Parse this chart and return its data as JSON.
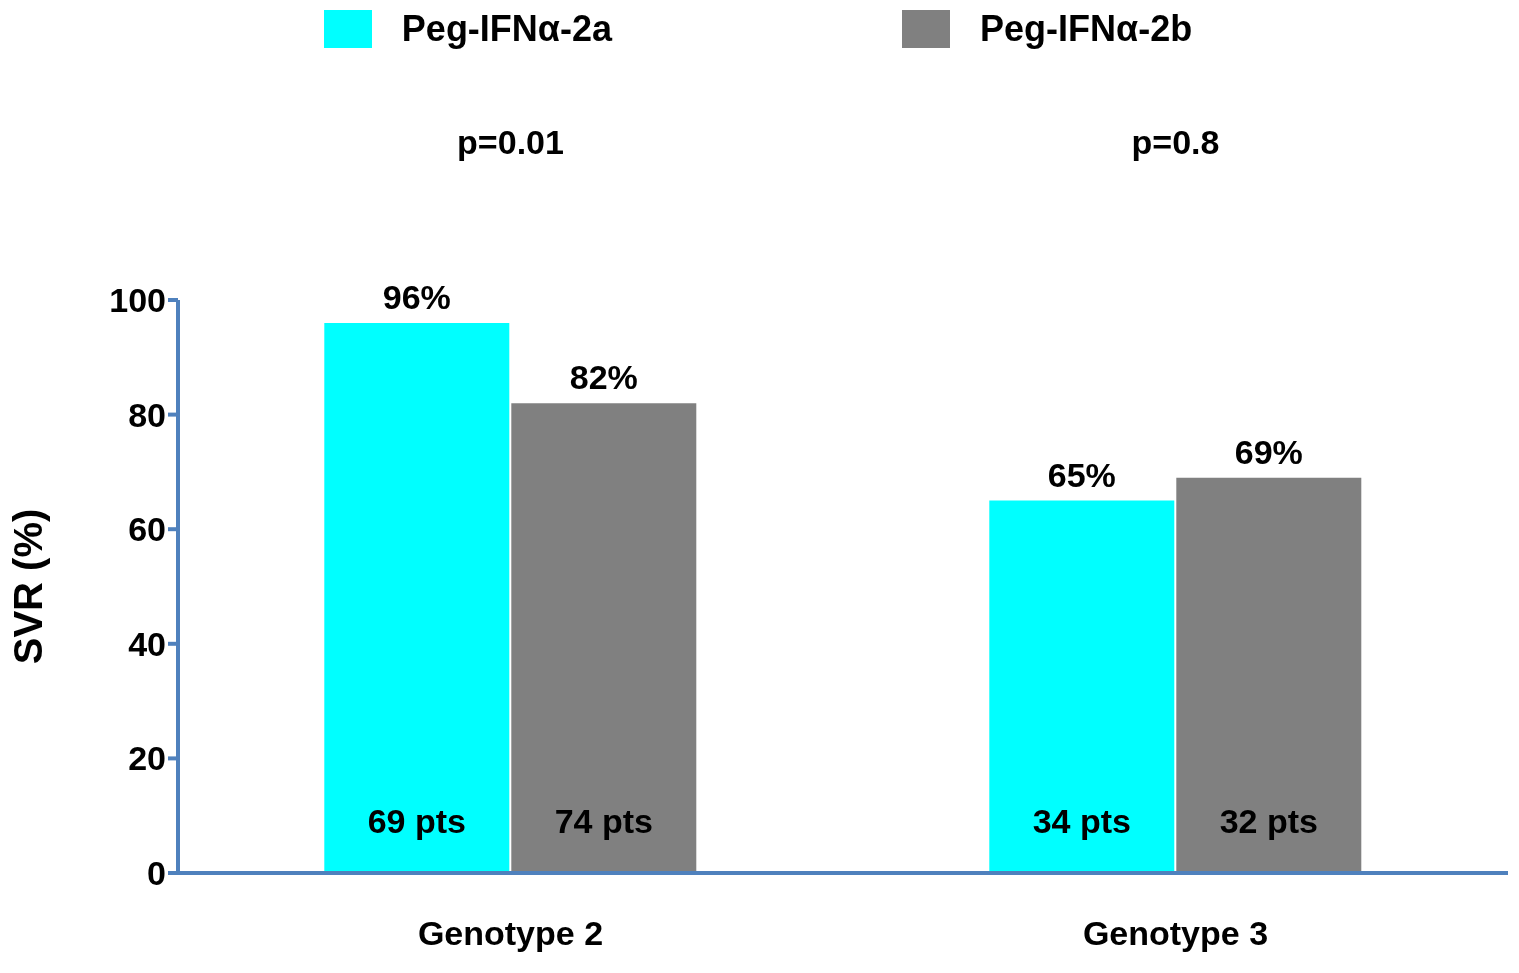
{
  "chart_data": {
    "type": "bar",
    "ylabel": "SVR (%)",
    "categories": [
      "Genotype 2",
      "Genotype 3"
    ],
    "series": [
      {
        "name": "Peg-IFNα-2a",
        "color": "#00ffff",
        "values": [
          96,
          65
        ],
        "value_labels": [
          "96%",
          "65%"
        ]
      },
      {
        "name": "Peg-IFNα-2b",
        "color": "#808080",
        "values": [
          82,
          69
        ],
        "value_labels": [
          "82%",
          "69%"
        ]
      }
    ],
    "annotations": [
      "p=0.01",
      "p=0.8",
      "69 pts",
      "74  pts",
      "34 pts",
      "32 pts"
    ],
    "ylim": [
      0,
      100
    ],
    "yticks": [
      0,
      20,
      40,
      60,
      80,
      100
    ],
    "grid": false,
    "legend": "top"
  }
}
